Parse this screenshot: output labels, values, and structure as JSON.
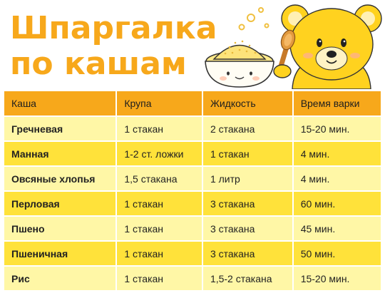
{
  "title": {
    "line1": "Шпаргалка",
    "line2": "по кашам"
  },
  "colors": {
    "accent": "#f7a81b",
    "row_light": "#fff7a6",
    "row_dark": "#ffe23a",
    "bear": "#ffd21f"
  },
  "table": {
    "headers": [
      "Каша",
      "Крупа",
      "Жидкость",
      "Время варки"
    ],
    "rows": [
      [
        "Гречневая",
        "1 стакан",
        "2 стакана",
        "15-20 мин."
      ],
      [
        "Манная",
        "1-2 ст. ложки",
        "1 стакан",
        "4 мин."
      ],
      [
        "Овсяные хлопья",
        "1,5 стакана",
        "1 литр",
        "4 мин."
      ],
      [
        "Перловая",
        "1 стакан",
        "3 стакана",
        "60 мин."
      ],
      [
        "Пшено",
        "1 стакан",
        "3 стакана",
        "45 мин."
      ],
      [
        "Пшеничная",
        "1 стакан",
        "3 стакана",
        "50 мин."
      ],
      [
        "Рис",
        "1 стакан",
        "1,5-2 стакана",
        "15-20 мин."
      ]
    ]
  },
  "illustrations": [
    "porridge-bowl-icon",
    "steam-icon",
    "teddy-bear-icon",
    "wooden-spoon-icon"
  ]
}
